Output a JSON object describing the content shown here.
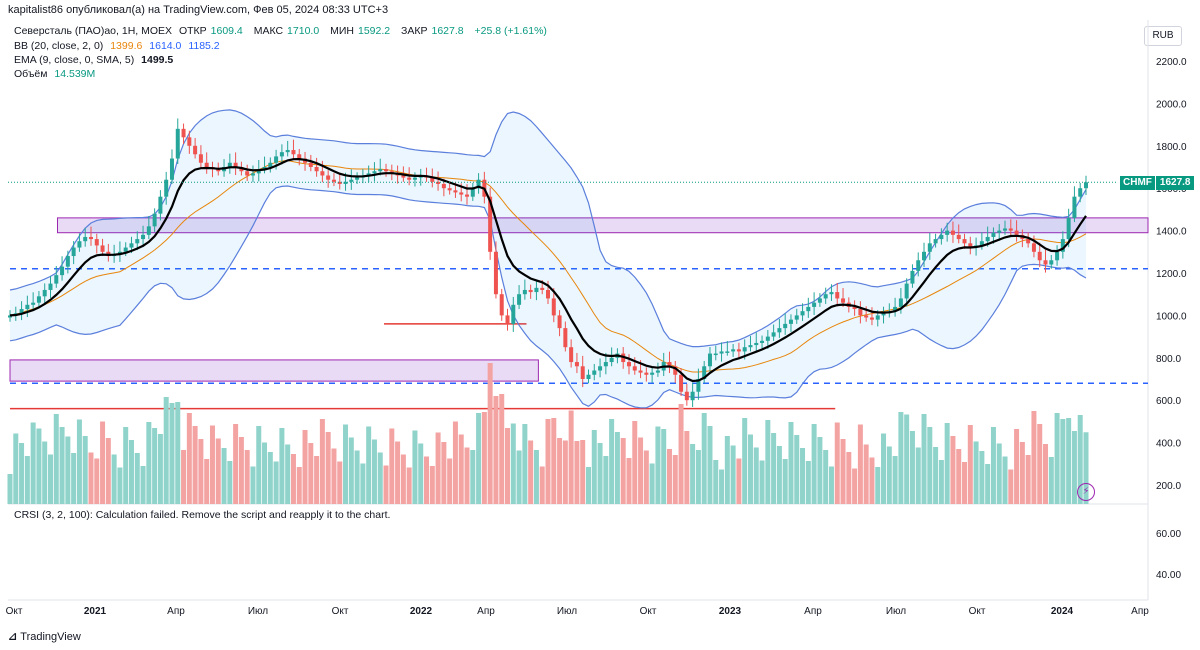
{
  "header": {
    "author_line": "kapitalist86 опубликовал(а) на TradingView.com, Фев 05, 2024 08:33 UTC+3"
  },
  "legend": {
    "symbol": "Северсталь (ПАО)ао, 1Н, MOEX",
    "open_label": "ОТКР",
    "open": "1609.4",
    "high_label": "МАКС",
    "high": "1710.0",
    "low_label": "МИН",
    "low": "1592.2",
    "close_label": "ЗАКР",
    "close": "1627.8",
    "change": "+25.8 (+1.61%)",
    "bb_label": "BB (20, close, 2, 0)",
    "bb_basis": "1399.6",
    "bb_upper": "1614.0",
    "bb_lower": "1185.2",
    "ema_label": "EMA (9, close, 0, SMA, 5)",
    "ema_value": "1499.5",
    "volume_label": "Объём",
    "volume_value": "14.539M"
  },
  "currency": "RUB",
  "last_price_tag": {
    "symbol": "CHMF",
    "value": "1627.8"
  },
  "crsi": {
    "label": "CRSI (3, 2, 100): Calculation failed. Remove the script and reapply it to the chart."
  },
  "branding": {
    "logo_text": "TradingView"
  },
  "colors": {
    "up": "#26a69a",
    "down": "#ef5350",
    "vol_up": "#8fd3cb",
    "vol_down": "#f4a3a3",
    "bb": "#5b7fdc",
    "bb_basis": "#e8860c",
    "ema": "#000000",
    "zone": "#e2cff2",
    "zone_border": "#9c27b0",
    "dash": "#2962ff",
    "support_red": "#e53935"
  },
  "chart_data": {
    "type": "candlestick",
    "title": "Северсталь (ПАО)ао, 1Н, MOEX",
    "y_axis": {
      "ticks": [
        "2200.0",
        "2000.0",
        "1800.0",
        "1600.0",
        "1400.0",
        "1200.0",
        "1000.0",
        "800.0",
        "600.0",
        "400.0",
        "200.0"
      ],
      "range": [
        140,
        2340
      ]
    },
    "crsi_axis": {
      "ticks": [
        "60.00",
        "40.00"
      ]
    },
    "x_axis": {
      "labels": [
        "Окт",
        "2021",
        "Апр",
        "Июл",
        "Окт",
        "2022",
        "Апр",
        "Июл",
        "Окт",
        "2023",
        "Апр",
        "Июл",
        "Окт",
        "2024",
        "Апр"
      ],
      "range_weeks": [
        0,
        190
      ]
    },
    "close_series": [
      1000,
      1010,
      1030,
      1050,
      1060,
      1090,
      1120,
      1150,
      1190,
      1230,
      1280,
      1320,
      1350,
      1370,
      1360,
      1330,
      1300,
      1280,
      1290,
      1300,
      1320,
      1340,
      1360,
      1380,
      1420,
      1480,
      1560,
      1640,
      1740,
      1880,
      1840,
      1800,
      1760,
      1720,
      1700,
      1690,
      1680,
      1700,
      1720,
      1700,
      1680,
      1660,
      1670,
      1690,
      1700,
      1720,
      1750,
      1770,
      1780,
      1760,
      1740,
      1720,
      1700,
      1680,
      1660,
      1640,
      1630,
      1620,
      1630,
      1640,
      1650,
      1660,
      1670,
      1680,
      1690,
      1680,
      1670,
      1660,
      1650,
      1640,
      1650,
      1660,
      1650,
      1630,
      1620,
      1600,
      1590,
      1580,
      1570,
      1560,
      1600,
      1640,
      1560,
      1300,
      1100,
      1000,
      960,
      1050,
      1100,
      1120,
      1110,
      1130,
      1120,
      1080,
      1000,
      940,
      850,
      780,
      760,
      700,
      720,
      740,
      760,
      780,
      800,
      820,
      780,
      760,
      740,
      730,
      720,
      730,
      740,
      780,
      760,
      720,
      640,
      600,
      640,
      700,
      760,
      820,
      820,
      830,
      830,
      840,
      830,
      850,
      860,
      870,
      880,
      900,
      920,
      940,
      960,
      980,
      1000,
      1020,
      1040,
      1060,
      1080,
      1100,
      1110,
      1080,
      1060,
      1040,
      1030,
      1000,
      990,
      980,
      1000,
      1010,
      1020,
      1040,
      1080,
      1150,
      1210,
      1260,
      1300,
      1340,
      1360,
      1380,
      1400,
      1380,
      1360,
      1340,
      1320,
      1330,
      1350,
      1370,
      1390,
      1400,
      1410,
      1400,
      1380,
      1360,
      1340,
      1300,
      1260,
      1240,
      1260,
      1300,
      1360,
      1460,
      1560,
      1600,
      1627.8
    ],
    "ema_series_desc": "EMA(9) of weekly closes",
    "bollinger": {
      "period": 20,
      "stdev": 2,
      "basis": 1399.6,
      "upper": 1614.0,
      "lower": 1185.2
    },
    "volume_desc": "weekly volume bars in lower panel",
    "zones": [
      {
        "name": "resistance-zone-upper",
        "y_low": 1390,
        "y_high": 1460,
        "x_from_week": 8
      },
      {
        "name": "support-zone-lower",
        "y_low": 690,
        "y_high": 790,
        "x_from_week": 0,
        "x_to_week": 89
      }
    ],
    "horizontal_levels": [
      {
        "name": "dashed-level-1220",
        "y": 1220,
        "style": "dashed"
      },
      {
        "name": "dashed-level-680",
        "y": 680,
        "style": "dashed"
      },
      {
        "name": "red-level-960",
        "y": 960,
        "x_from_week": 63,
        "x_to_week": 87
      },
      {
        "name": "red-level-560",
        "y": 560,
        "x_from_week": 0,
        "x_to_week": 139
      }
    ],
    "current_price": 1627.8
  }
}
